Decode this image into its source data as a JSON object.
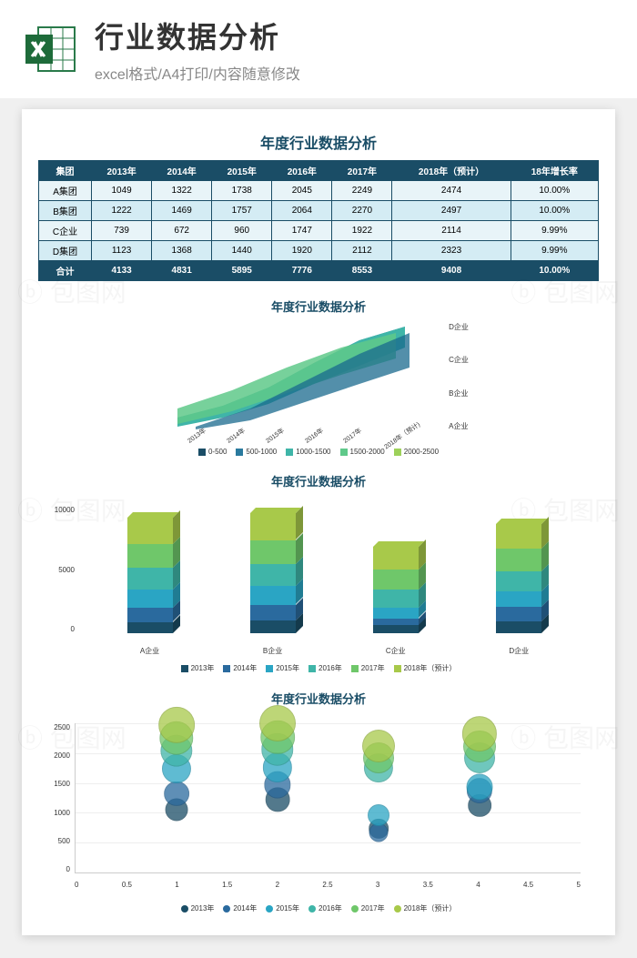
{
  "header": {
    "title": "行业数据分析",
    "subtitle": "excel格式/A4打印/内容随意修改"
  },
  "main_title": "年度行业数据分析",
  "table": {
    "columns": [
      "集团",
      "2013年",
      "2014年",
      "2015年",
      "2016年",
      "2017年",
      "2018年（预计）",
      "18年增长率"
    ],
    "rows": [
      [
        "A集团",
        "1049",
        "1322",
        "1738",
        "2045",
        "2249",
        "2474",
        "10.00%"
      ],
      [
        "B集团",
        "1222",
        "1469",
        "1757",
        "2064",
        "2270",
        "2497",
        "10.00%"
      ],
      [
        "C企业",
        "739",
        "672",
        "960",
        "1747",
        "1922",
        "2114",
        "9.99%"
      ],
      [
        "D集团",
        "1123",
        "1368",
        "1440",
        "1920",
        "2112",
        "2323",
        "9.99%"
      ]
    ],
    "total": [
      "合计",
      "4133",
      "4831",
      "5895",
      "7776",
      "8553",
      "9408",
      "10.00%"
    ]
  },
  "chart1": {
    "title": "年度行业数据分析",
    "y_labels": [
      "D企业",
      "C企业",
      "B企业",
      "A企业"
    ],
    "x_labels": [
      "2013年",
      "2014年",
      "2015年",
      "2016年",
      "2017年",
      "2018年（预计)"
    ],
    "legend": [
      "0-500",
      "500-1000",
      "1000-1500",
      "1500-2000",
      "2000-2500"
    ],
    "legend_colors": [
      "#1a4d66",
      "#2a7a9e",
      "#3fb5a8",
      "#5fc98a",
      "#9dd15a"
    ]
  },
  "chart2": {
    "title": "年度行业数据分析",
    "y_labels": [
      "10000",
      "5000",
      "0"
    ],
    "x_labels": [
      "A企业",
      "B企业",
      "C企业",
      "D企业"
    ],
    "legend": [
      "2013年",
      "2014年",
      "2015年",
      "2016年",
      "2017年",
      "2018年（预计）"
    ],
    "colors": [
      "#1a4d66",
      "#2a6a9e",
      "#2aa5c4",
      "#3fb5a8",
      "#6fc76a",
      "#a8c94a"
    ],
    "stacks": [
      [
        1049,
        1322,
        1738,
        2045,
        2249,
        2474
      ],
      [
        1222,
        1469,
        1757,
        2064,
        2270,
        2497
      ],
      [
        739,
        672,
        960,
        1747,
        1922,
        2114
      ],
      [
        1123,
        1368,
        1440,
        1920,
        2112,
        2323
      ]
    ],
    "ymax": 12000
  },
  "chart3": {
    "title": "年度行业数据分析",
    "y_ticks": [
      "2500",
      "2000",
      "1500",
      "1000",
      "500",
      "0"
    ],
    "x_ticks": [
      "0",
      "0.5",
      "1",
      "1.5",
      "2",
      "2.5",
      "3",
      "3.5",
      "4",
      "4.5",
      "5"
    ],
    "legend": [
      "2013年",
      "2014年",
      "2015年",
      "2016年",
      "2017年",
      "2018年（预计）"
    ],
    "colors": [
      "#1a4d66",
      "#2a6a9e",
      "#2aa5c4",
      "#3fb5a8",
      "#6fc76a",
      "#a8c94a"
    ],
    "ymax": 2500,
    "series": [
      {
        "x": 1,
        "values": [
          1049,
          1322,
          1738,
          2045,
          2249,
          2474
        ]
      },
      {
        "x": 2,
        "values": [
          1222,
          1469,
          1757,
          2064,
          2270,
          2497
        ]
      },
      {
        "x": 3,
        "values": [
          739,
          672,
          960,
          1747,
          1922,
          2114
        ]
      },
      {
        "x": 4,
        "values": [
          1123,
          1368,
          1440,
          1920,
          2112,
          2323
        ]
      }
    ]
  }
}
